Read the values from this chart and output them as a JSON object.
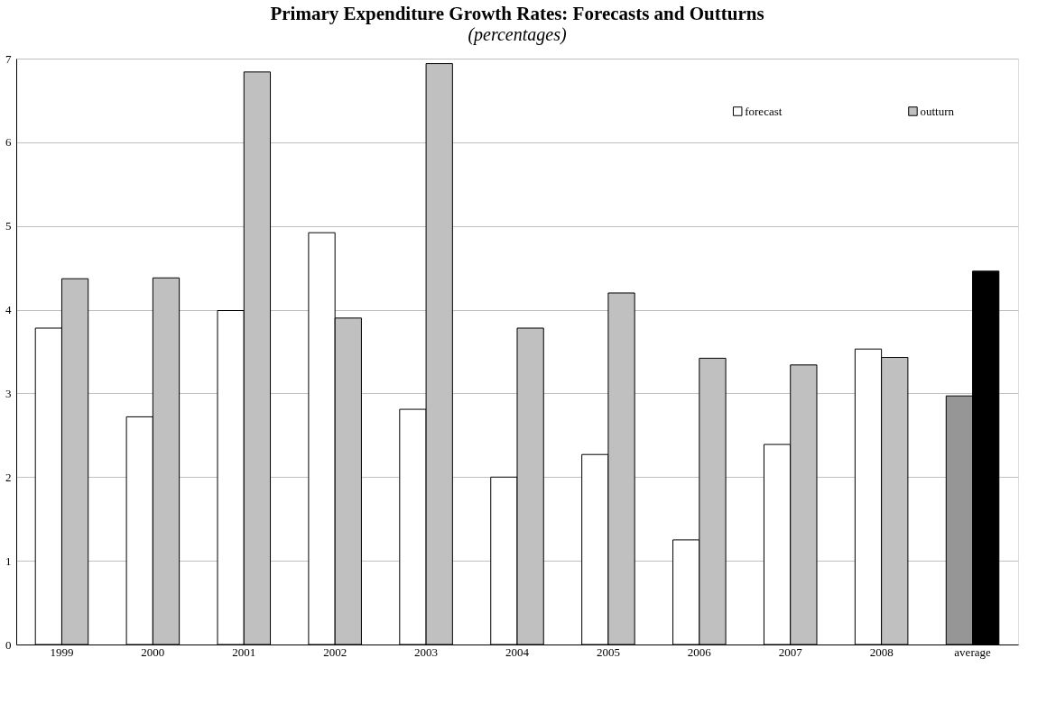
{
  "chart_data": {
    "type": "bar",
    "title": "Primary Expenditure Growth Rates: Forecasts and Outturns",
    "subtitle": "(percentages)",
    "categories": [
      "1999",
      "2000",
      "2001",
      "2002",
      "2003",
      "2004",
      "2005",
      "2006",
      "2007",
      "2008",
      "average"
    ],
    "series": [
      {
        "name": "forecast",
        "color": "#ffffff",
        "colors": [
          "#ffffff",
          "#ffffff",
          "#ffffff",
          "#ffffff",
          "#ffffff",
          "#ffffff",
          "#ffffff",
          "#ffffff",
          "#ffffff",
          "#ffffff",
          "#969696"
        ],
        "values": [
          3.78,
          2.72,
          3.99,
          4.92,
          2.81,
          2.0,
          2.27,
          1.25,
          2.39,
          3.53,
          2.97
        ]
      },
      {
        "name": "outturn",
        "color": "#c0c0c0",
        "colors": [
          "#c0c0c0",
          "#c0c0c0",
          "#c0c0c0",
          "#c0c0c0",
          "#c0c0c0",
          "#c0c0c0",
          "#c0c0c0",
          "#c0c0c0",
          "#c0c0c0",
          "#c0c0c0",
          "#000000"
        ],
        "values": [
          4.37,
          4.38,
          6.84,
          3.9,
          6.94,
          3.78,
          4.2,
          3.42,
          3.34,
          3.43,
          4.46
        ]
      }
    ],
    "ylim": [
      0,
      7
    ],
    "yticks": [
      0,
      1,
      2,
      3,
      4,
      5,
      6,
      7
    ],
    "grid": "y",
    "legend": "top right"
  }
}
